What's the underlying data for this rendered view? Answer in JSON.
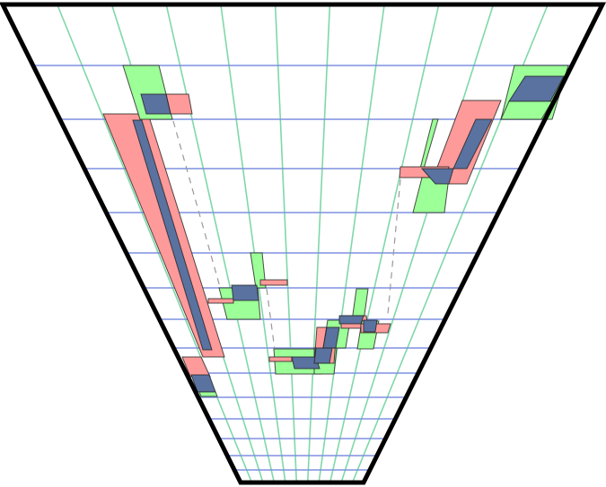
{
  "diagram": {
    "colors": {
      "frame": "#000000",
      "row_line": "#7f90e0",
      "column_line": "#7fd8a8",
      "pink_region": "#ff9a9a",
      "green_region": "#9cff98",
      "overlap_region": "#5a72a0",
      "connector": "#999999"
    }
  }
}
